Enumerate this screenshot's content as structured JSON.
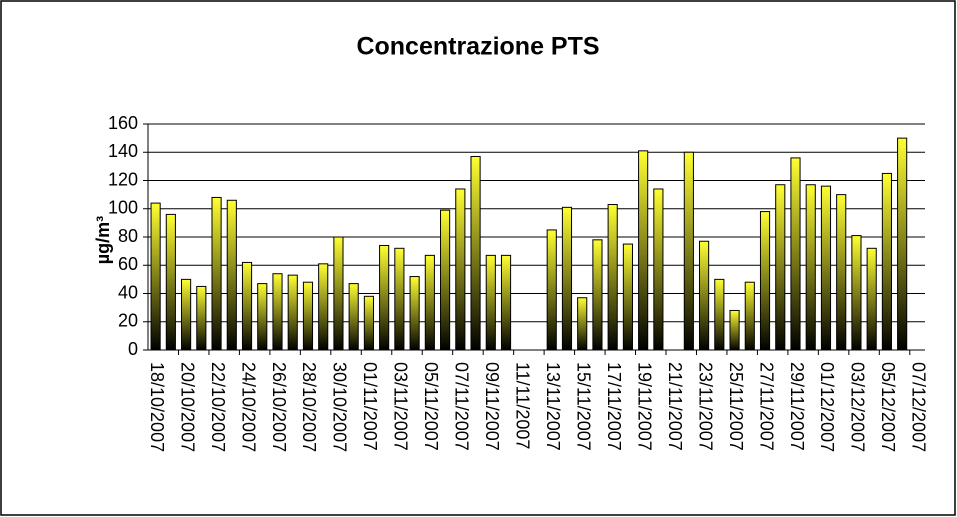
{
  "chart_data": {
    "type": "bar",
    "title": "Concentrazione PTS",
    "y_label": "µg/m³",
    "categories": [
      "18/10/2007",
      null,
      "20/10/2007",
      null,
      "22/10/2007",
      null,
      "24/10/2007",
      null,
      "26/10/2007",
      null,
      "28/10/2007",
      null,
      "30/10/2007",
      null,
      "01/11/2007",
      null,
      "03/11/2007",
      null,
      "05/11/2007",
      null,
      "07/11/2007",
      null,
      "09/11/2007",
      null,
      "11/11/2007",
      null,
      "13/11/2007",
      null,
      "15/11/2007",
      null,
      "17/11/2007",
      null,
      "19/11/2007",
      null,
      "21/11/2007",
      null,
      "23/11/2007",
      null,
      "25/11/2007",
      null,
      "27/11/2007",
      null,
      "29/11/2007",
      null,
      "01/12/2007",
      null,
      "03/12/2007",
      null,
      "05/12/2007",
      null,
      "07/12/2007"
    ],
    "values": [
      104,
      96,
      50,
      45,
      108,
      106,
      62,
      47,
      54,
      53,
      48,
      61,
      80,
      47,
      38,
      74,
      72,
      52,
      67,
      99,
      114,
      137,
      67,
      67,
      null,
      null,
      85,
      101,
      37,
      78,
      103,
      75,
      141,
      114,
      null,
      140,
      77,
      50,
      28,
      48,
      98,
      117,
      136,
      117,
      116,
      110,
      81,
      72,
      125,
      150,
      null
    ],
    "color": "#ffff33",
    "ylim": [
      0,
      160
    ],
    "yticks": [
      0,
      20,
      40,
      60,
      80,
      100,
      120,
      140,
      160
    ],
    "grid": true
  }
}
